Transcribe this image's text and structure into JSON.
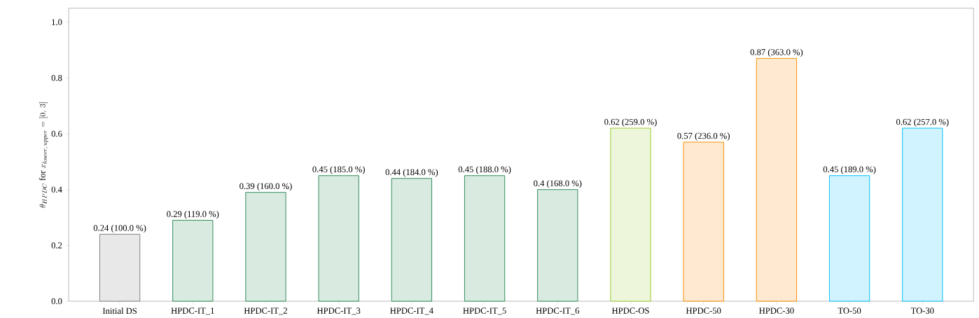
{
  "chart_data": {
    "type": "bar",
    "ylabel": "\\theta_{HPDC}\\ \\mathrm{for}\\ x_{lower,\\,upper} = [0,\\,3]",
    "categories": [
      "Initial DS",
      "HPDC-IT_1",
      "HPDC-IT_2",
      "HPDC-IT_3",
      "HPDC-IT_4",
      "HPDC-IT_5",
      "HPDC-IT_6",
      "HPDC-OS",
      "HPDC-50",
      "HPDC-30",
      "TO-50",
      "TO-30"
    ],
    "values": [
      0.24,
      0.29,
      0.39,
      0.45,
      0.44,
      0.45,
      0.4,
      0.62,
      0.57,
      0.87,
      0.45,
      0.62
    ],
    "colors": [
      "#808080",
      "#2e8b57",
      "#2e8b57",
      "#2e8b57",
      "#2e8b57",
      "#2e8b57",
      "#2e8b57",
      "#9acd32",
      "#ff8c00",
      "#ff8c00",
      "#00bfff",
      "#00bfff"
    ],
    "value_labels": [
      "0.24 (100.0 %)",
      "0.29 (119.0 %)",
      "0.39 (160.0 %)",
      "0.45 (185.0 %)",
      "0.44 (184.0 %)",
      "0.45 (188.0 %)",
      "0.4 (168.0 %)",
      "0.62 (259.0 %)",
      "0.57 (236.0 %)",
      "0.87 (363.0 %)",
      "0.45 (189.0 %)",
      "0.62 (257.0 %)"
    ],
    "ylim": [
      0,
      1.05
    ],
    "yticks": [
      {
        "value": 0,
        "label": "0.0"
      },
      {
        "value": 0.2,
        "label": "0.2"
      },
      {
        "value": 0.4,
        "label": "0.4"
      },
      {
        "value": 0.6,
        "label": "0.6"
      },
      {
        "value": 0.8,
        "label": "0.8"
      },
      {
        "value": 1.0,
        "label": "1.0"
      }
    ],
    "grid": false
  }
}
